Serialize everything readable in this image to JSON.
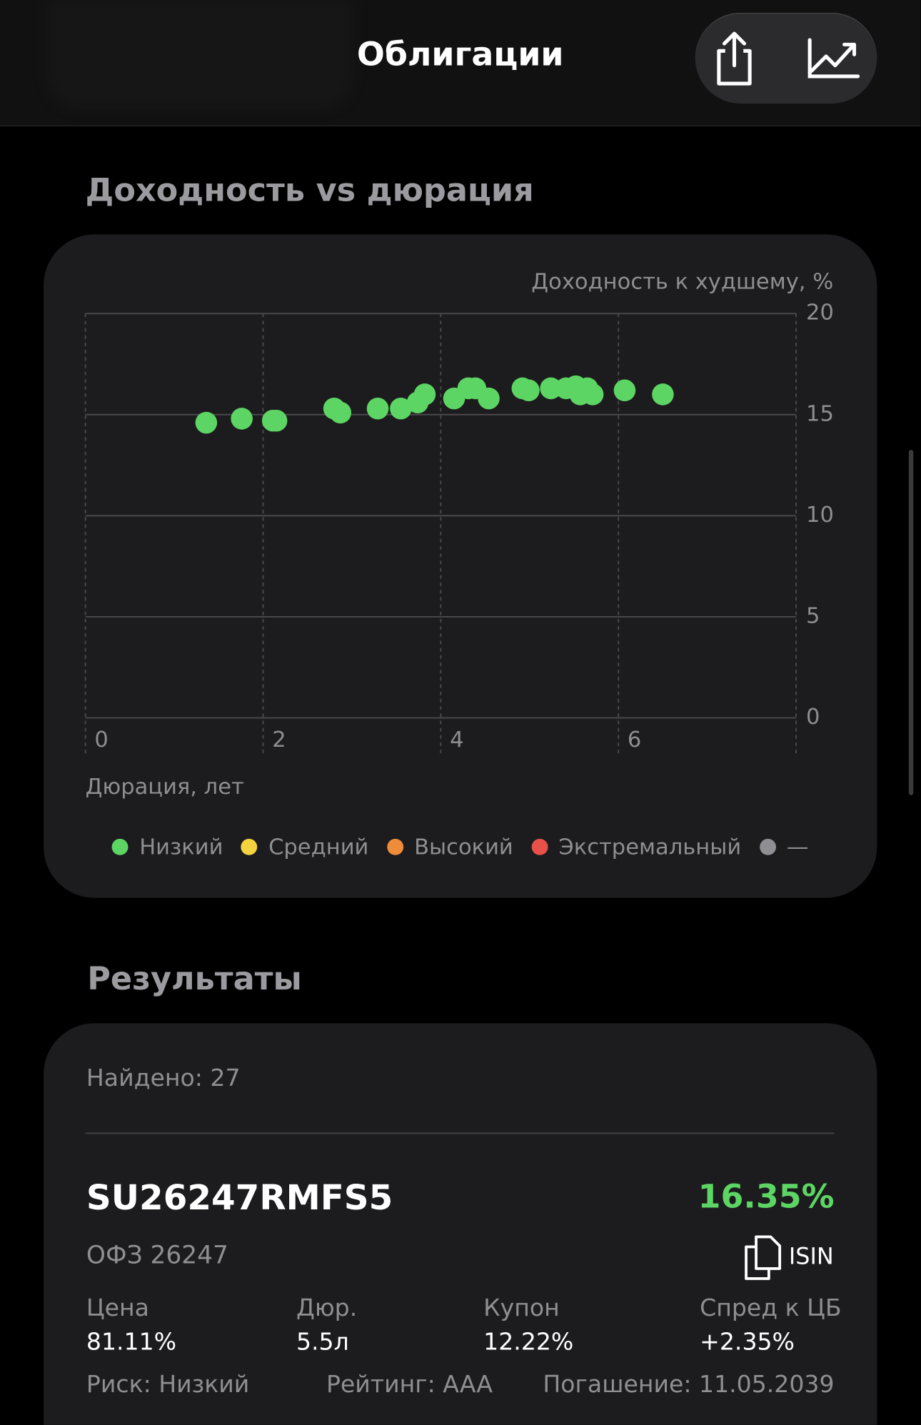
{
  "header": {
    "title": "Облигации"
  },
  "chart_section": {
    "title": "Доходность vs дюрация"
  },
  "chart_data": {
    "type": "scatter",
    "y_label": "Доходность к худшему, %",
    "x_label": "Дюрация, лет",
    "xlim": [
      0,
      8
    ],
    "ylim": [
      0,
      20
    ],
    "xticks": [
      0,
      2,
      4,
      6
    ],
    "yticks": [
      0,
      5,
      10,
      15,
      20
    ],
    "grid": true,
    "series": [
      {
        "name": "Низкий",
        "color": "#5dd564",
        "x": [
          1.36,
          1.76,
          2.11,
          2.15,
          2.8,
          2.87,
          3.29,
          3.55,
          3.74,
          3.82,
          4.15,
          4.31,
          4.39,
          4.54,
          4.92,
          4.99,
          5.24,
          5.41,
          5.52,
          5.57,
          5.65,
          5.71,
          6.07,
          6.5
        ],
        "values": [
          14.6,
          14.8,
          14.7,
          14.7,
          15.3,
          15.1,
          15.3,
          15.3,
          15.6,
          16.0,
          15.8,
          16.3,
          16.3,
          15.8,
          16.3,
          16.2,
          16.3,
          16.3,
          16.4,
          16.0,
          16.3,
          16.0,
          16.2,
          16.0
        ]
      },
      {
        "name": "Средний",
        "color": "#f4d33f",
        "x": [],
        "values": []
      },
      {
        "name": "Высокий",
        "color": "#ef8c3a",
        "x": [],
        "values": []
      },
      {
        "name": "Экстремальный",
        "color": "#e8504a",
        "x": [],
        "values": []
      },
      {
        "name": "—",
        "color": "#8e8e93",
        "x": [],
        "values": []
      }
    ]
  },
  "results": {
    "title": "Результаты",
    "found": "Найдено: 27",
    "items": [
      {
        "isin": "SU26247RMFS5",
        "yield": "16.35%",
        "name": "ОФЗ 26247",
        "isin_button": "ISIN",
        "fields": [
          {
            "label": "Цена",
            "value": "81.11%"
          },
          {
            "label": "Дюр.",
            "value": "5.5л"
          },
          {
            "label": "Купон",
            "value": "12.22%"
          },
          {
            "label": "Спред к ЦБ",
            "value": "+2.35%"
          }
        ],
        "risk": "Риск: Низкий",
        "rating": "Рейтинг: AAA",
        "maturity": "Погашение: 11.05.2039"
      }
    ]
  }
}
